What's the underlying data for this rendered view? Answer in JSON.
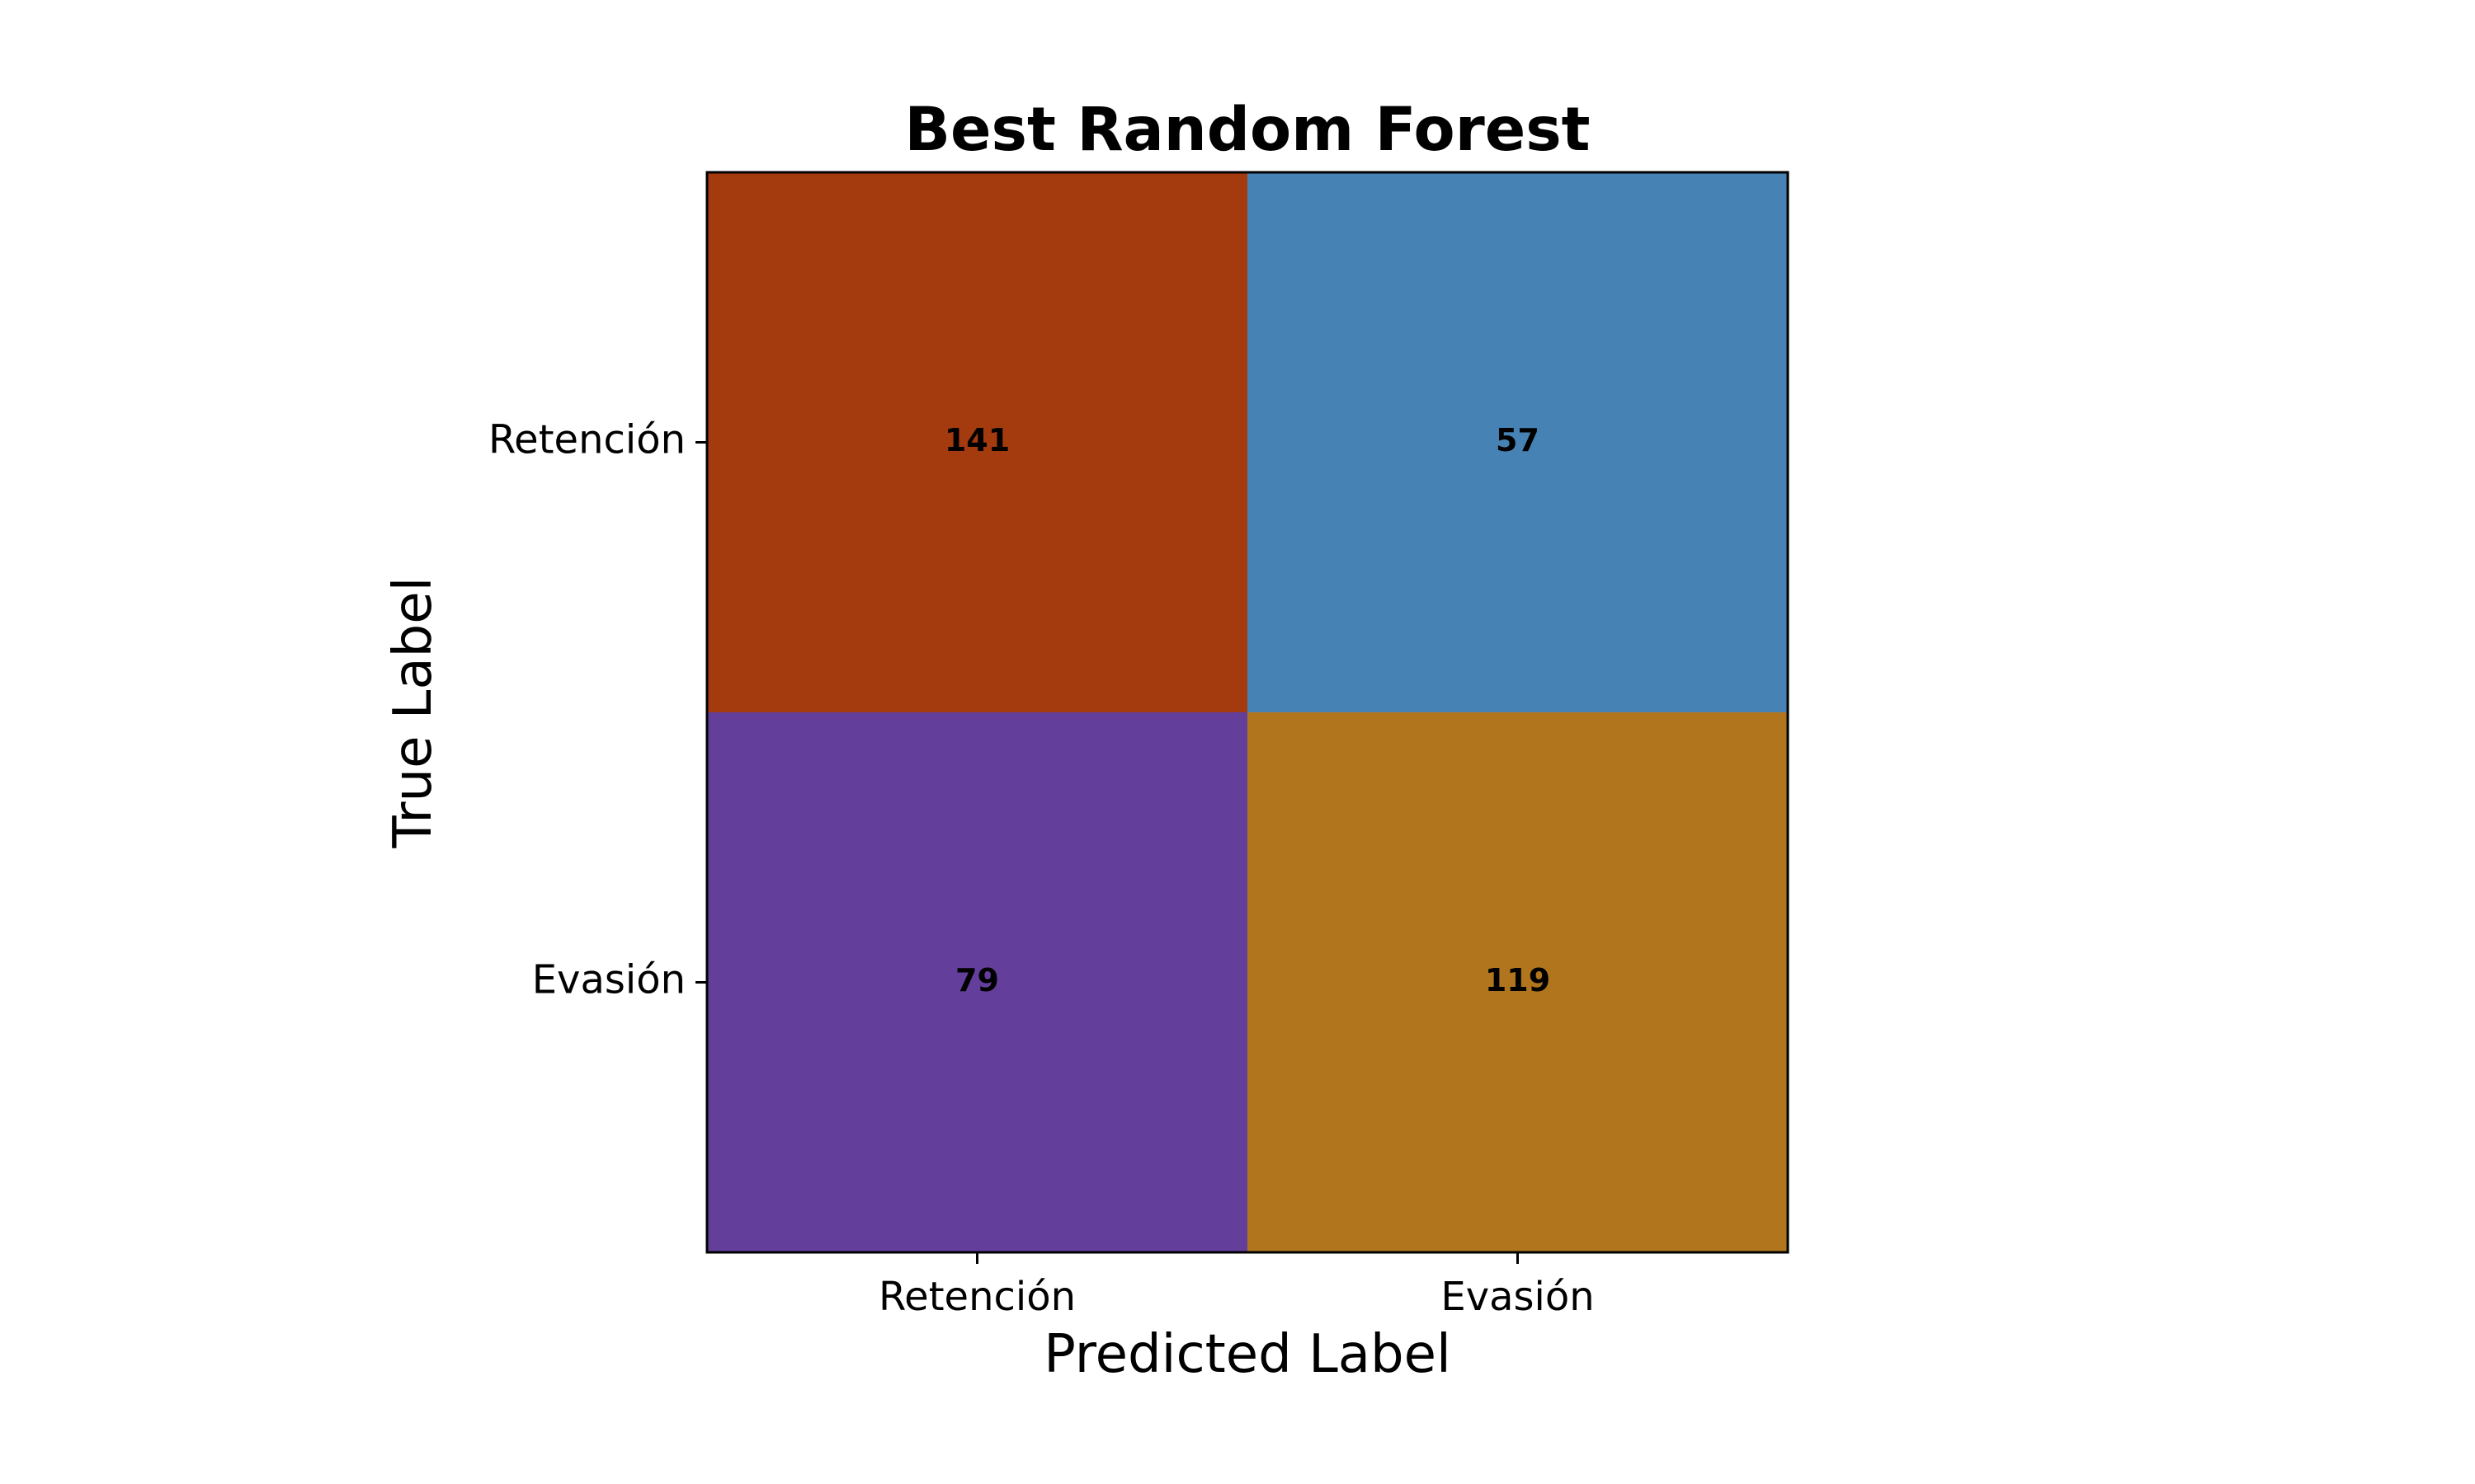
{
  "chart_data": {
    "type": "heatmap",
    "title": "Best Random Forest",
    "xlabel": "Predicted Label",
    "ylabel": "True Label",
    "x_categories": [
      "Retención",
      "Evasión"
    ],
    "y_categories": [
      "Retención",
      "Evasión"
    ],
    "values": [
      [
        141,
        57
      ],
      [
        79,
        119
      ]
    ],
    "cell_colors": [
      [
        "#a33b0e",
        "#4682b4"
      ],
      [
        "#633e9b",
        "#b1761d"
      ]
    ],
    "grid": false,
    "legend": "none"
  }
}
